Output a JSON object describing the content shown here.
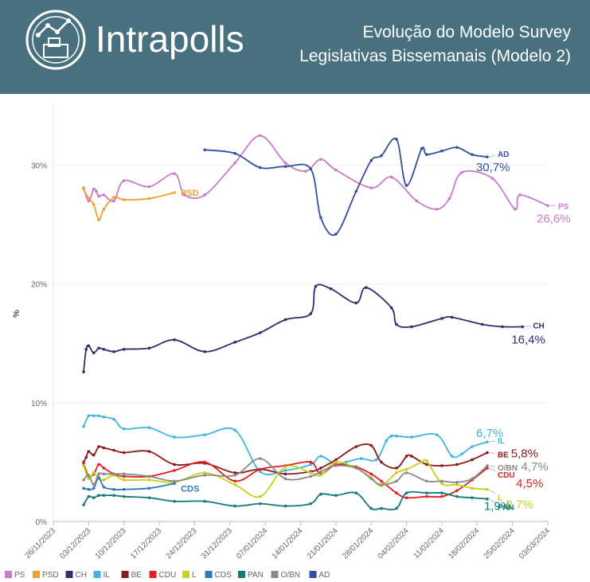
{
  "header": {
    "brand": "Intrapolls",
    "title_line1": "Evolução do Modelo Survey",
    "title_line2": "Legislativas Bissemanais (Modelo 2)"
  },
  "chart_data": {
    "type": "line",
    "ylabel": "%",
    "xlabel": "",
    "ylim": [
      0,
      35
    ],
    "yticks": [
      0,
      10,
      20,
      30
    ],
    "ytick_labels": [
      "0%",
      "10%",
      "20%",
      "30%"
    ],
    "xlim": [
      0,
      98
    ],
    "xticks": [
      0,
      7,
      14,
      21,
      28,
      35,
      42,
      49,
      56,
      63,
      70,
      77,
      84,
      91,
      98
    ],
    "xtick_labels": [
      "26/11/2023",
      "03/12/2023",
      "10/12/2023",
      "17/12/2023",
      "24/12/2023",
      "31/12/2023",
      "07/01/2024",
      "14/01/2024",
      "21/01/2024",
      "28/01/2024",
      "04/02/2024",
      "11/02/2024",
      "18/02/2024",
      "25/02/2024",
      "03/03/2024"
    ],
    "series": [
      {
        "name": "PS",
        "color": "#c77cc5",
        "end_value": "26,6%",
        "x": [
          6,
          7,
          8,
          8.5,
          9,
          10,
          12,
          14,
          19,
          24,
          26,
          30,
          36,
          41,
          46,
          50,
          53,
          56,
          63,
          67,
          72,
          76,
          78.5,
          81,
          87,
          91.5,
          92.5,
          98
        ],
        "y": [
          28.1,
          27.0,
          28.0,
          27.8,
          27.4,
          27.5,
          27.0,
          28.7,
          28.2,
          29.3,
          27.5,
          27.5,
          30.2,
          32.5,
          30.2,
          29.5,
          30.5,
          29.6,
          28.1,
          29.0,
          27.0,
          26.3,
          27.2,
          29.4,
          28.9,
          26.3,
          27.5,
          26.6
        ]
      },
      {
        "name": "PSD",
        "color": "#f0a030",
        "end_value": null,
        "x": [
          6,
          7,
          8,
          9,
          10,
          12,
          14,
          19,
          24
        ],
        "y": [
          28.0,
          27.2,
          26.7,
          25.4,
          26.3,
          27.3,
          27.1,
          27.2,
          27.7
        ]
      },
      {
        "name": "CH",
        "color": "#2e2f6b",
        "end_value": "16,4%",
        "x": [
          6,
          6.5,
          7,
          8,
          9,
          10,
          12,
          14,
          19,
          24,
          30,
          36,
          41,
          46,
          51,
          52,
          55,
          60,
          62,
          67,
          68,
          71,
          77,
          79,
          85,
          89,
          93
        ],
        "y": [
          12.6,
          14.5,
          14.8,
          14.2,
          14.6,
          14.5,
          14.3,
          14.5,
          14.6,
          15.3,
          14.3,
          15.1,
          15.9,
          17.0,
          17.5,
          19.8,
          19.6,
          18.4,
          19.7,
          18.0,
          16.6,
          16.4,
          17.1,
          17.2,
          16.6,
          16.4,
          16.4
        ]
      },
      {
        "name": "IL",
        "color": "#3fb4e0",
        "end_value": "6,7%",
        "x": [
          6,
          7,
          8,
          9,
          10,
          12,
          14,
          19,
          24,
          30,
          36,
          41,
          46,
          51,
          53,
          56,
          58,
          61,
          64,
          66,
          67,
          68,
          71,
          76,
          79,
          81,
          83,
          86
        ],
        "y": [
          8.0,
          8.9,
          8.9,
          8.9,
          8.8,
          8.6,
          7.8,
          7.9,
          7.1,
          7.3,
          7.7,
          4.2,
          4.3,
          4.8,
          5.5,
          4.8,
          5.0,
          5.3,
          5.2,
          6.8,
          7.2,
          7.2,
          7.1,
          7.3,
          5.5,
          5.7,
          6.3,
          6.7
        ]
      },
      {
        "name": "BE",
        "color": "#8b1a1a",
        "end_value": "5,8%",
        "x": [
          6,
          6.5,
          7,
          8,
          9,
          10,
          12,
          14,
          19,
          24,
          30,
          36,
          41,
          46,
          51,
          53,
          56,
          60,
          63,
          65,
          68,
          70,
          71,
          74,
          77,
          80,
          83,
          86
        ],
        "y": [
          5.0,
          5.4,
          5.9,
          5.6,
          6.3,
          6.2,
          6.0,
          5.8,
          5.9,
          4.8,
          4.9,
          4.1,
          4.4,
          4.0,
          4.2,
          4.5,
          5.2,
          6.3,
          6.4,
          5.0,
          4.5,
          5.5,
          5.5,
          4.8,
          4.7,
          4.8,
          5.2,
          5.8
        ]
      },
      {
        "name": "CDU",
        "color": "#e02020",
        "end_value": "4,5%",
        "x": [
          6,
          7,
          8,
          9,
          10,
          12,
          14,
          19,
          24,
          30,
          36,
          41,
          46,
          51,
          53,
          56,
          60,
          63,
          65,
          68,
          70,
          74,
          77,
          80,
          83,
          86
        ],
        "y": [
          4.9,
          3.8,
          4.0,
          4.8,
          4.5,
          4.0,
          3.8,
          3.8,
          4.3,
          5.0,
          3.4,
          4.4,
          4.7,
          5.0,
          4.0,
          4.8,
          4.6,
          4.0,
          3.4,
          2.4,
          2.0,
          2.1,
          2.1,
          2.6,
          3.5,
          4.5
        ]
      },
      {
        "name": "L",
        "color": "#c3d218",
        "end_value": "2,7%",
        "x": [
          6,
          7,
          8,
          9,
          10,
          12,
          14,
          19,
          24,
          30,
          36,
          41,
          46,
          51,
          53,
          56,
          60,
          63,
          65,
          68,
          70,
          73,
          74,
          77,
          80,
          83,
          86
        ],
        "y": [
          4.7,
          3.6,
          4.1,
          3.6,
          3.5,
          3.9,
          3.5,
          3.5,
          3.3,
          4.1,
          3.1,
          2.1,
          4.6,
          4.1,
          3.9,
          5.0,
          4.5,
          3.7,
          3.0,
          4.1,
          4.4,
          5.0,
          5.1,
          3.2,
          3.1,
          2.8,
          2.7
        ]
      },
      {
        "name": "CDS",
        "color": "#2e7bb8",
        "end_value": null,
        "x": [
          6,
          7,
          8,
          9,
          10,
          12,
          14,
          19,
          24
        ],
        "y": [
          2.8,
          2.7,
          2.8,
          3.7,
          2.9,
          2.7,
          2.7,
          2.8,
          3.2
        ]
      },
      {
        "name": "PAN",
        "color": "#127a7a",
        "end_value": "1,9%",
        "x": [
          6,
          7,
          8,
          9,
          10,
          12,
          14,
          19,
          24,
          30,
          36,
          41,
          46,
          51,
          53,
          56,
          60,
          63,
          65,
          68,
          70,
          74,
          77,
          80,
          83,
          86
        ],
        "y": [
          1.4,
          2.1,
          2.0,
          2.2,
          2.2,
          2.2,
          2.1,
          2.0,
          1.7,
          1.7,
          1.3,
          1.5,
          1.3,
          1.5,
          2.3,
          2.2,
          2.4,
          1.1,
          1.1,
          1.1,
          2.4,
          2.4,
          2.4,
          2.1,
          2.0,
          1.9
        ]
      },
      {
        "name": "O/BN",
        "color": "#8a8a8a",
        "end_value": "4,7%",
        "x": [
          6,
          7,
          8,
          9,
          10,
          12,
          14,
          19,
          24,
          30,
          36,
          41,
          46,
          51,
          53,
          56,
          60,
          63,
          65,
          68,
          70,
          74,
          77,
          80,
          83,
          86
        ],
        "y": [
          3.5,
          3.9,
          3.1,
          4.0,
          4.0,
          4.0,
          4.0,
          3.8,
          3.4,
          3.9,
          3.9,
          5.3,
          3.6,
          3.8,
          4.2,
          4.7,
          4.5,
          3.6,
          3.1,
          3.4,
          4.1,
          3.4,
          3.4,
          3.3,
          3.6,
          4.7
        ]
      },
      {
        "name": "AD",
        "color": "#3350a0",
        "end_value": "30,7%",
        "x": [
          30,
          36,
          41,
          46,
          51,
          53,
          56,
          60,
          63,
          65,
          68,
          70,
          73,
          74,
          77,
          80,
          83,
          86
        ],
        "y": [
          31.3,
          31.0,
          29.8,
          29.9,
          29.7,
          25.6,
          24.2,
          27.8,
          30.4,
          30.8,
          32.2,
          28.3,
          31.4,
          30.9,
          31.2,
          31.5,
          30.9,
          30.7
        ]
      }
    ],
    "inline_labels": [
      {
        "series": "PSD",
        "text": "PSD"
      },
      {
        "series": "CDS",
        "text": "CDS"
      }
    ],
    "end_labels": [
      {
        "series": "AD",
        "name": "AD",
        "value": "30,7%"
      },
      {
        "series": "PS",
        "name": "PS",
        "value": "26,6%"
      },
      {
        "series": "CH",
        "name": "CH",
        "value": "16,4%"
      },
      {
        "series": "IL",
        "name": "IL",
        "value": "6,7%"
      },
      {
        "series": "BE",
        "name": "BE",
        "value": "5,8%"
      },
      {
        "series": "O/BN",
        "name": "O/BN",
        "value": "4,7%"
      },
      {
        "series": "CDU",
        "name": "CDU",
        "value": "4,5%"
      },
      {
        "series": "L",
        "name": "L",
        "value": "2,7%"
      },
      {
        "series": "PAN",
        "name": "PAN",
        "value": "1,9%"
      }
    ],
    "legend": {
      "position": "bottom",
      "entries": [
        "PS",
        "PSD",
        "CH",
        "IL",
        "BE",
        "CDU",
        "L",
        "CDS",
        "PAN",
        "O/BN",
        "AD"
      ]
    }
  }
}
